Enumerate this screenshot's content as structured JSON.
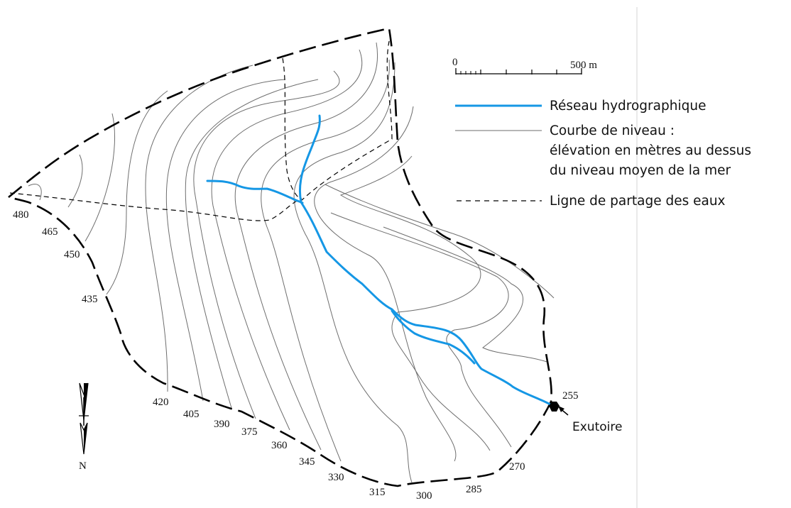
{
  "scale_bar": {
    "start_label": "0",
    "end_label": "500 m"
  },
  "legend": {
    "river_label": "Réseau hydrographique",
    "contour_label_line1": "Courbe de niveau :",
    "contour_label_line2": "élévation en mètres au dessus",
    "contour_label_line3": "du niveau moyen de la mer",
    "divide_label": "Ligne de partage des eaux"
  },
  "outlet": {
    "label": "Exutoire",
    "elevation": "255"
  },
  "north_label": "N",
  "elevation_labels": [
    "480",
    "465",
    "450",
    "435",
    "420",
    "405",
    "390",
    "375",
    "360",
    "345",
    "330",
    "315",
    "300",
    "285",
    "270"
  ],
  "colors": {
    "river": "#1597e5",
    "contour": "#6e6e6e",
    "boundary": "#000000"
  }
}
